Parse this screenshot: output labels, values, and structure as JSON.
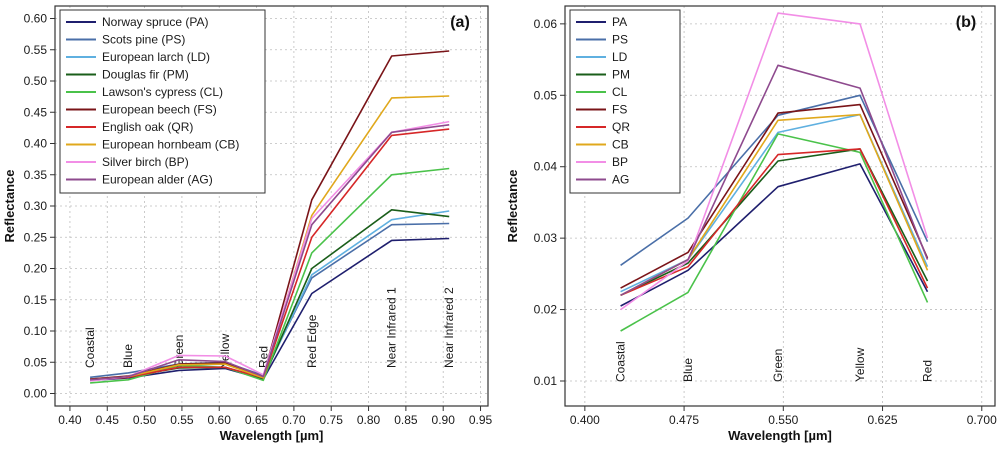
{
  "chart_data": [
    {
      "type": "line",
      "panel_label": "(a)",
      "xlabel": "Wavelength [µm]",
      "ylabel": "Reflectance",
      "xlim": [
        0.38,
        0.96
      ],
      "ylim": [
        -0.02,
        0.62
      ],
      "xticks": [
        0.4,
        0.45,
        0.5,
        0.55,
        0.6,
        0.65,
        0.7,
        0.75,
        0.8,
        0.85,
        0.9,
        0.95
      ],
      "xtick_labels": [
        "0.40",
        "0.45",
        "0.50",
        "0.55",
        "0.60",
        "0.65",
        "0.70",
        "0.75",
        "0.80",
        "0.85",
        "0.90",
        "0.95"
      ],
      "yticks": [
        0.0,
        0.05,
        0.1,
        0.15,
        0.2,
        0.25,
        0.3,
        0.35,
        0.4,
        0.45,
        0.5,
        0.55,
        0.6
      ],
      "ytick_labels": [
        "0.00",
        "0.05",
        "0.10",
        "0.15",
        "0.20",
        "0.25",
        "0.30",
        "0.35",
        "0.40",
        "0.45",
        "0.50",
        "0.55",
        "0.60"
      ],
      "grid": true,
      "legend_position": "top-left",
      "band_labels": [
        {
          "text": "Coastal",
          "x": 0.427
        },
        {
          "text": "Blue",
          "x": 0.478
        },
        {
          "text": "Green",
          "x": 0.546
        },
        {
          "text": "Yellow",
          "x": 0.608
        },
        {
          "text": "Red",
          "x": 0.659
        },
        {
          "text": "Red Edge",
          "x": 0.724
        },
        {
          "text": "Near Infrared 1",
          "x": 0.831
        },
        {
          "text": "Near Infrared 2",
          "x": 0.908
        }
      ],
      "x": [
        0.427,
        0.478,
        0.546,
        0.608,
        0.659,
        0.724,
        0.831,
        0.908
      ],
      "series": [
        {
          "name": "Norway spruce (PA)",
          "color": "#1f1f6e",
          "values": [
            0.021,
            0.025,
            0.037,
            0.04,
            0.023,
            0.16,
            0.245,
            0.248
          ]
        },
        {
          "name": "Scots pine (PS)",
          "color": "#4a6fa8",
          "values": [
            0.026,
            0.033,
            0.047,
            0.05,
            0.029,
            0.185,
            0.27,
            0.272
          ]
        },
        {
          "name": "European larch (LD)",
          "color": "#5fb0e0",
          "values": [
            0.023,
            0.027,
            0.045,
            0.047,
            0.026,
            0.19,
            0.278,
            0.292
          ]
        },
        {
          "name": "Douglas fir (PM)",
          "color": "#1a5e1a",
          "values": [
            0.022,
            0.027,
            0.041,
            0.042,
            0.024,
            0.2,
            0.294,
            0.283
          ]
        },
        {
          "name": "Lawson's cypress (CL)",
          "color": "#4ac24a",
          "values": [
            0.017,
            0.022,
            0.045,
            0.042,
            0.021,
            0.225,
            0.35,
            0.36
          ]
        },
        {
          "name": "European beech (FS)",
          "color": "#7a1418",
          "values": [
            0.023,
            0.028,
            0.047,
            0.049,
            0.027,
            0.31,
            0.54,
            0.548
          ]
        },
        {
          "name": "English oak (QR)",
          "color": "#d62728",
          "values": [
            0.022,
            0.026,
            0.042,
            0.042,
            0.025,
            0.25,
            0.413,
            0.423
          ]
        },
        {
          "name": "European hornbeam (CB)",
          "color": "#e0a81c",
          "values": [
            0.022,
            0.027,
            0.046,
            0.047,
            0.025,
            0.285,
            0.473,
            0.476
          ]
        },
        {
          "name": "Silver birch (BP)",
          "color": "#f28ee6",
          "values": [
            0.02,
            0.027,
            0.061,
            0.06,
            0.03,
            0.28,
            0.418,
            0.435
          ]
        },
        {
          "name": "European alder (AG)",
          "color": "#8e4a8e",
          "values": [
            0.022,
            0.027,
            0.054,
            0.051,
            0.027,
            0.27,
            0.418,
            0.43
          ]
        }
      ]
    },
    {
      "type": "line",
      "panel_label": "(b)",
      "xlabel": "Wavelength [µm]",
      "ylabel": "Reflectance",
      "xlim": [
        0.385,
        0.71
      ],
      "ylim": [
        0.0065,
        0.0625
      ],
      "xticks": [
        0.4,
        0.475,
        0.55,
        0.625,
        0.7
      ],
      "xtick_labels": [
        "0.400",
        "0.475",
        "0.550",
        "0.625",
        "0.700"
      ],
      "yticks": [
        0.01,
        0.02,
        0.03,
        0.04,
        0.05,
        0.06
      ],
      "ytick_labels": [
        "0.01",
        "0.02",
        "0.03",
        "0.04",
        "0.05",
        "0.06"
      ],
      "grid": true,
      "legend_position": "top-left",
      "band_labels": [
        {
          "text": "Coastal",
          "x": 0.427
        },
        {
          "text": "Blue",
          "x": 0.478
        },
        {
          "text": "Green",
          "x": 0.546
        },
        {
          "text": "Yellow",
          "x": 0.608
        },
        {
          "text": "Red",
          "x": 0.659
        }
      ],
      "x": [
        0.427,
        0.478,
        0.546,
        0.608,
        0.659
      ],
      "series": [
        {
          "name": "PA",
          "color": "#1f1f6e",
          "values": [
            0.0205,
            0.0255,
            0.0372,
            0.0404,
            0.0225
          ]
        },
        {
          "name": "PS",
          "color": "#4a6fa8",
          "values": [
            0.0262,
            0.0328,
            0.0472,
            0.05,
            0.0295
          ]
        },
        {
          "name": "LD",
          "color": "#5fb0e0",
          "values": [
            0.0225,
            0.027,
            0.0448,
            0.0473,
            0.026
          ]
        },
        {
          "name": "PM",
          "color": "#1a5e1a",
          "values": [
            0.022,
            0.0265,
            0.0408,
            0.0425,
            0.024
          ]
        },
        {
          "name": "CL",
          "color": "#4ac24a",
          "values": [
            0.017,
            0.0224,
            0.0446,
            0.042,
            0.021
          ]
        },
        {
          "name": "FS",
          "color": "#7a1418",
          "values": [
            0.023,
            0.028,
            0.0475,
            0.0487,
            0.0272
          ]
        },
        {
          "name": "QR",
          "color": "#d62728",
          "values": [
            0.022,
            0.026,
            0.0417,
            0.0425,
            0.023
          ]
        },
        {
          "name": "CB",
          "color": "#e0a81c",
          "values": [
            0.022,
            0.027,
            0.0465,
            0.0473,
            0.0255
          ]
        },
        {
          "name": "BP",
          "color": "#f28ee6",
          "values": [
            0.02,
            0.0268,
            0.0615,
            0.06,
            0.03
          ]
        },
        {
          "name": "AG",
          "color": "#8e4a8e",
          "values": [
            0.022,
            0.027,
            0.0542,
            0.051,
            0.027
          ]
        }
      ]
    }
  ]
}
